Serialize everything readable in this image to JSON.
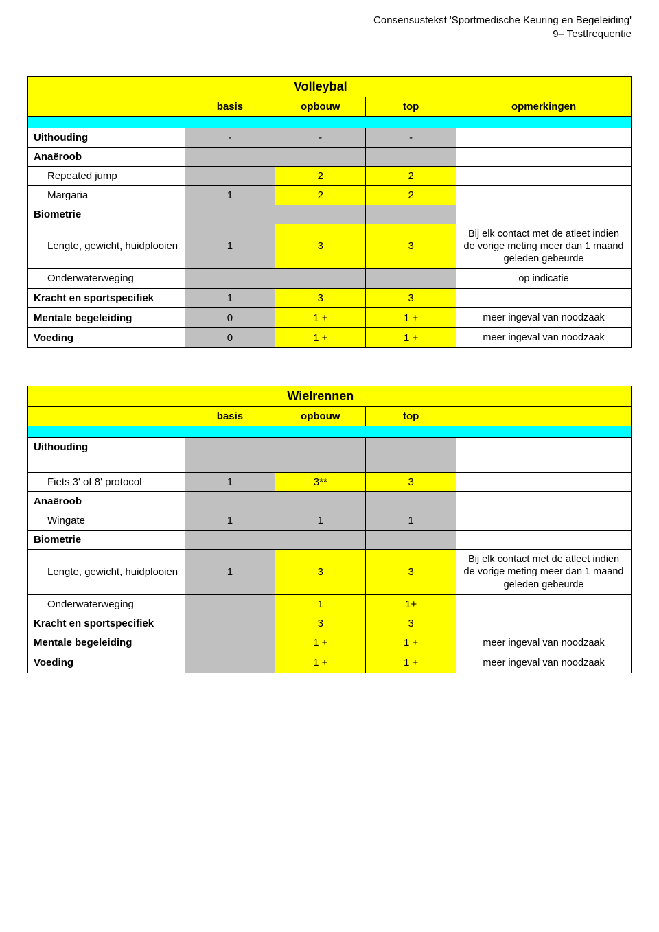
{
  "header": {
    "line1": "Consensustekst 'Sportmedische Keuring en Begeleiding'",
    "line2": "9– Testfrequentie"
  },
  "colors": {
    "yellow": "#ffff00",
    "cyan": "#00ffff",
    "grey": "#c0c0c0",
    "white": "#ffffff",
    "black": "#000000"
  },
  "columnHeaders": {
    "c1": "basis",
    "c2": "opbouw",
    "c3": "top",
    "c4": "opmerkingen"
  },
  "remarkTexts": {
    "contact": "Bij elk contact met de atleet indien de vorige meting meer dan 1 maand geleden gebeurde",
    "opIndicatie": "op indicatie",
    "noodzaak": "meer ingeval van noodzaak"
  },
  "tables": [
    {
      "title": "Volleybal",
      "showOpmerkingenHeader": true,
      "rows": [
        {
          "type": "cyan"
        },
        {
          "type": "data",
          "label": "Uithouding",
          "bold": true,
          "cells": [
            "-",
            "-",
            "-"
          ],
          "remark": ""
        },
        {
          "type": "cat",
          "label": "Anaëroob"
        },
        {
          "type": "data",
          "label": "Repeated jump",
          "indent": true,
          "cells": [
            "",
            "2",
            "2"
          ],
          "yellow": [
            false,
            true,
            true
          ],
          "remark": ""
        },
        {
          "type": "data",
          "label": "Margaria",
          "indent": true,
          "cells": [
            "1",
            "2",
            "2"
          ],
          "yellow": [
            false,
            true,
            true
          ],
          "remark": ""
        },
        {
          "type": "cat",
          "label": "Biometrie"
        },
        {
          "type": "data",
          "label": "Lengte, gewicht, huidplooien",
          "indent": true,
          "cells": [
            "1",
            "3",
            "3"
          ],
          "yellow": [
            false,
            true,
            true
          ],
          "remark": "contact"
        },
        {
          "type": "data",
          "label": "Onderwaterweging",
          "indent": true,
          "cells": [
            "",
            "",
            ""
          ],
          "remark": "opIndicatie"
        },
        {
          "type": "data",
          "label": "Kracht en sportspecifiek",
          "bold": true,
          "cells": [
            "1",
            "3",
            "3"
          ],
          "yellow": [
            false,
            true,
            true
          ],
          "remark": ""
        },
        {
          "type": "data",
          "label": "Mentale begeleiding",
          "bold": true,
          "cells": [
            "0",
            "1 +",
            "1 +"
          ],
          "yellow": [
            false,
            true,
            true
          ],
          "remark": "noodzaak"
        },
        {
          "type": "data",
          "label": "Voeding",
          "bold": true,
          "cells": [
            "0",
            "1 +",
            "1 +"
          ],
          "yellow": [
            false,
            true,
            true
          ],
          "remark": "noodzaak"
        }
      ]
    },
    {
      "title": "Wielrennen",
      "showOpmerkingenHeader": false,
      "rows": [
        {
          "type": "cyan"
        },
        {
          "type": "cat",
          "label": "Uithouding",
          "tallGap": true
        },
        {
          "type": "data",
          "label": "Fiets 3' of 8' protocol",
          "indent": true,
          "cells": [
            "1",
            "3**",
            "3"
          ],
          "yellow": [
            false,
            true,
            true
          ],
          "remark": ""
        },
        {
          "type": "cat",
          "label": "Anaëroob"
        },
        {
          "type": "data",
          "label": "Wingate",
          "indent": true,
          "cells": [
            "1",
            "1",
            "1"
          ],
          "remark": ""
        },
        {
          "type": "cat",
          "label": "Biometrie"
        },
        {
          "type": "data",
          "label": "Lengte, gewicht, huidplooien",
          "indent": true,
          "cells": [
            "1",
            "3",
            "3"
          ],
          "yellow": [
            false,
            true,
            true
          ],
          "remark": "contact"
        },
        {
          "type": "data",
          "label": "Onderwaterweging",
          "indent": true,
          "cells": [
            "",
            "1",
            "1+"
          ],
          "yellow": [
            false,
            true,
            true
          ],
          "remark": ""
        },
        {
          "type": "data",
          "label": "Kracht en sportspecifiek",
          "bold": true,
          "cells": [
            "",
            "3",
            "3"
          ],
          "yellow": [
            false,
            true,
            true
          ],
          "remark": ""
        },
        {
          "type": "data",
          "label": "Mentale begeleiding",
          "bold": true,
          "cells": [
            "",
            "1 +",
            "1 +"
          ],
          "yellow": [
            false,
            true,
            true
          ],
          "remark": "noodzaak"
        },
        {
          "type": "data",
          "label": "Voeding",
          "bold": true,
          "cells": [
            "",
            "1 +",
            "1 +"
          ],
          "yellow": [
            false,
            true,
            true
          ],
          "remark": "noodzaak"
        }
      ]
    }
  ]
}
